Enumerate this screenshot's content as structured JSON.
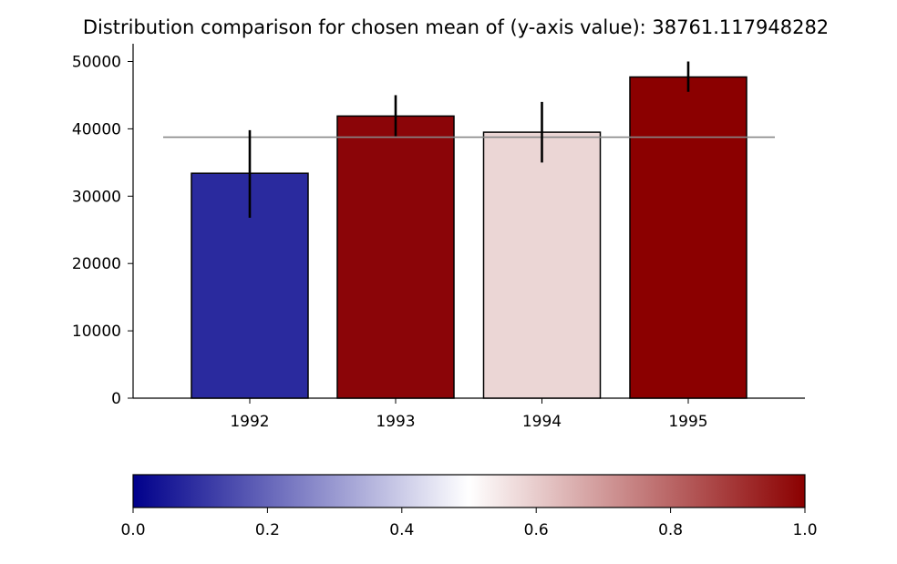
{
  "chart_data": {
    "type": "bar",
    "title": "Distribution comparison for chosen mean of (y-axis value): 38761.117948282",
    "xlabel": "",
    "ylabel": "",
    "categories": [
      "1992",
      "1993",
      "1994",
      "1995"
    ],
    "values": [
      33400,
      41900,
      39500,
      47700
    ],
    "error_low": [
      26800,
      38900,
      35000,
      45500
    ],
    "error_high": [
      39800,
      45000,
      44000,
      50000
    ],
    "bar_colors": [
      "#2a2a9e",
      "#8b0508",
      "#ebd6d5",
      "#8b0000"
    ],
    "reference_line": 38761.117948282,
    "reference_line_color": "#888888",
    "ylim": [
      0,
      52000
    ],
    "yticks": [
      0,
      10000,
      20000,
      30000,
      40000,
      50000
    ],
    "grid": false,
    "colorbar": {
      "colormap": "seismic",
      "stops": [
        "#00008b",
        "#ffffff",
        "#8b0000"
      ],
      "range": [
        0.0,
        1.0
      ],
      "ticks": [
        "0.0",
        "0.2",
        "0.4",
        "0.6",
        "0.8",
        "1.0"
      ]
    }
  }
}
